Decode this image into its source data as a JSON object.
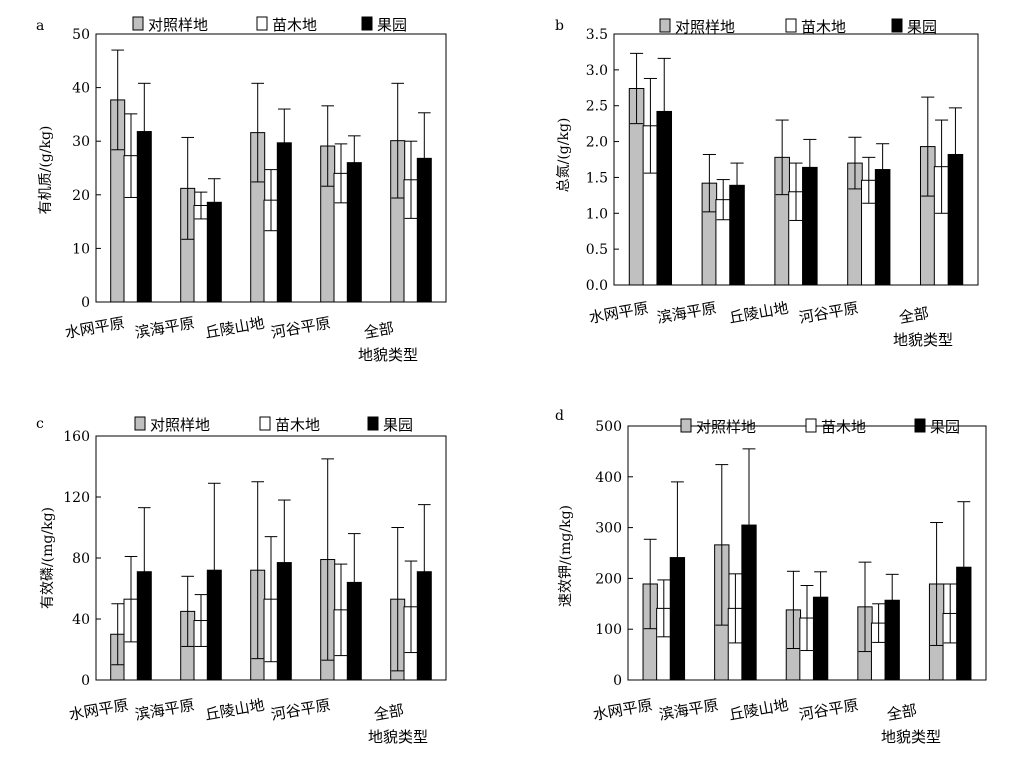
{
  "chart_data": [
    {
      "panel": "a",
      "type": "bar",
      "ylabel": "有机质/(g/kg)",
      "xlabel": "",
      "ylim": [
        0,
        50
      ],
      "yticks": [
        "0",
        "10",
        "20",
        "30",
        "40",
        "50"
      ],
      "categories": [
        "水网平原",
        "滨海平原",
        "丘陵山地",
        "河谷平原",
        "全部|地貌类型"
      ],
      "series": [
        {
          "name": "对照样地",
          "color": "#c0c0c0",
          "values": [
            37.7,
            21.2,
            31.6,
            29.1,
            30.1
          ],
          "errors": [
            9.3,
            9.5,
            9.2,
            7.5,
            10.7
          ]
        },
        {
          "name": "苗木地",
          "color": "#ffffff",
          "values": [
            27.3,
            18.0,
            19.0,
            24.0,
            22.8
          ],
          "errors": [
            7.8,
            2.5,
            5.7,
            5.5,
            7.2
          ]
        },
        {
          "name": "果园",
          "color": "#000000",
          "values": [
            31.8,
            18.6,
            29.7,
            26.0,
            26.8
          ],
          "errors": [
            9.0,
            4.4,
            6.3,
            5.0,
            8.5
          ]
        }
      ]
    },
    {
      "panel": "b",
      "type": "bar",
      "ylabel": "总氮/(g/kg)",
      "xlabel": "",
      "ylim": [
        0,
        3.5
      ],
      "yticks": [
        "0.0",
        "0.5",
        "1.0",
        "1.5",
        "2.0",
        "2.5",
        "3.0",
        "3.5"
      ],
      "categories": [
        "水网平原",
        "滨海平原",
        "丘陵山地",
        "河谷平原",
        "全部|地貌类型"
      ],
      "series": [
        {
          "name": "对照样地",
          "color": "#c0c0c0",
          "values": [
            2.74,
            1.42,
            1.78,
            1.7,
            1.93
          ],
          "errors": [
            0.49,
            0.4,
            0.52,
            0.36,
            0.69
          ]
        },
        {
          "name": "苗木地",
          "color": "#ffffff",
          "values": [
            2.22,
            1.19,
            1.3,
            1.46,
            1.65
          ],
          "errors": [
            0.66,
            0.28,
            0.4,
            0.32,
            0.65
          ]
        },
        {
          "name": "果园",
          "color": "#000000",
          "values": [
            2.42,
            1.39,
            1.64,
            1.61,
            1.82
          ],
          "errors": [
            0.74,
            0.31,
            0.39,
            0.36,
            0.65
          ]
        }
      ]
    },
    {
      "panel": "c",
      "type": "bar",
      "ylabel": "有效磷/(mg/kg)",
      "xlabel": "",
      "ylim": [
        0,
        160
      ],
      "yticks": [
        "0",
        "40",
        "80",
        "120",
        "160"
      ],
      "categories": [
        "水网平原",
        "滨海平原",
        "丘陵山地",
        "河谷平原",
        "全部|地貌类型"
      ],
      "series": [
        {
          "name": "对照样地",
          "color": "#c0c0c0",
          "values": [
            30,
            45,
            72,
            79,
            53
          ],
          "errors": [
            20,
            23,
            58,
            66,
            47
          ]
        },
        {
          "name": "苗木地",
          "color": "#ffffff",
          "values": [
            53,
            39,
            53,
            46,
            48
          ],
          "errors": [
            28,
            17,
            41,
            30,
            30
          ]
        },
        {
          "name": "果园",
          "color": "#000000",
          "values": [
            71,
            72,
            77,
            64,
            71
          ],
          "errors": [
            42,
            57,
            41,
            32,
            44
          ]
        }
      ]
    },
    {
      "panel": "d",
      "type": "bar",
      "ylabel": "速效钾/(mg/kg)",
      "xlabel": "",
      "ylim": [
        0,
        500
      ],
      "yticks": [
        "0",
        "100",
        "200",
        "300",
        "400",
        "500"
      ],
      "categories": [
        "水网平原",
        "滨海平原",
        "丘陵山地",
        "河谷平原",
        "全部|地貌类型"
      ],
      "series": [
        {
          "name": "对照样地",
          "color": "#c0c0c0",
          "values": [
            189,
            266,
            138,
            144,
            189
          ],
          "errors": [
            88,
            158,
            76,
            88,
            121
          ]
        },
        {
          "name": "苗木地",
          "color": "#ffffff",
          "values": [
            141,
            141,
            122,
            112,
            131
          ],
          "errors": [
            56,
            68,
            64,
            38,
            58
          ]
        },
        {
          "name": "果园",
          "color": "#000000",
          "values": [
            241,
            305,
            163,
            157,
            222
          ],
          "errors": [
            149,
            150,
            50,
            51,
            129
          ]
        }
      ]
    }
  ]
}
